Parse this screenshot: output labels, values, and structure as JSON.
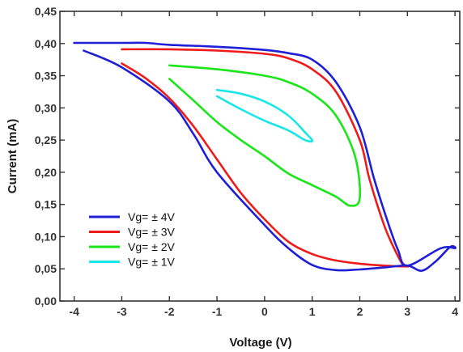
{
  "chart_data": {
    "type": "line",
    "title": "",
    "xlabel": "Voltage (V)",
    "ylabel": "Current (mA)",
    "xlim": [
      -4.3,
      4.1
    ],
    "ylim": [
      0.0,
      0.45
    ],
    "x_ticks": [
      -4,
      -3,
      -2,
      -1,
      0,
      1,
      2,
      3,
      4
    ],
    "x_tick_labels": [
      "-4",
      "-3",
      "-2",
      "-1",
      "0",
      "1",
      "2",
      "3",
      "4"
    ],
    "y_ticks": [
      0.0,
      0.05,
      0.1,
      0.15,
      0.2,
      0.25,
      0.3,
      0.35,
      0.4,
      0.45
    ],
    "y_tick_labels": [
      "0,00",
      "0,05",
      "0,10",
      "0,15",
      "0,20",
      "0,25",
      "0,30",
      "0,35",
      "0,40",
      "0,45"
    ],
    "grid": false,
    "legend_position": "bottom-left",
    "series": [
      {
        "name": "Vg= ± 4V",
        "color": "#1f1fd6",
        "x": [
          -3.8,
          -3.0,
          -2.0,
          -1.5,
          -1.0,
          0.0,
          0.5,
          1.0,
          1.5,
          2.0,
          2.5,
          3.0,
          3.3,
          3.6,
          3.9,
          4.0,
          3.7,
          3.0,
          2.8,
          2.6,
          2.3,
          2.0,
          1.5,
          1.0,
          0.5,
          0.0,
          -1.0,
          -2.0,
          -2.5,
          -3.0,
          -4.0
        ],
        "y": [
          0.389,
          0.363,
          0.31,
          0.26,
          0.2,
          0.118,
          0.082,
          0.056,
          0.048,
          0.049,
          0.052,
          0.055,
          0.047,
          0.062,
          0.084,
          0.082,
          0.082,
          0.055,
          0.08,
          0.12,
          0.19,
          0.27,
          0.34,
          0.375,
          0.385,
          0.39,
          0.395,
          0.398,
          0.401,
          0.401,
          0.401
        ]
      },
      {
        "name": "Vg= ± 3V",
        "color": "#ee1b1b",
        "x": [
          -3.0,
          -2.5,
          -2.0,
          -1.5,
          -1.0,
          -0.5,
          0.0,
          0.5,
          1.0,
          1.5,
          2.0,
          2.5,
          3.0,
          2.9,
          2.7,
          2.5,
          2.2,
          2.0,
          1.5,
          1.0,
          0.5,
          0.0,
          -1.0,
          -2.0,
          -3.0
        ],
        "y": [
          0.369,
          0.346,
          0.315,
          0.272,
          0.22,
          0.168,
          0.127,
          0.092,
          0.073,
          0.063,
          0.058,
          0.055,
          0.054,
          0.057,
          0.085,
          0.12,
          0.19,
          0.25,
          0.325,
          0.36,
          0.377,
          0.384,
          0.389,
          0.391,
          0.391
        ]
      },
      {
        "name": "Vg= ± 2V",
        "color": "#19e619",
        "x": [
          -2.0,
          -1.5,
          -1.0,
          -0.5,
          0.0,
          0.5,
          1.0,
          1.5,
          1.8,
          2.0,
          1.9,
          1.5,
          1.0,
          0.5,
          0.0,
          -1.0,
          -2.0
        ],
        "y": [
          0.345,
          0.312,
          0.278,
          0.25,
          0.225,
          0.198,
          0.18,
          0.162,
          0.148,
          0.16,
          0.225,
          0.288,
          0.322,
          0.34,
          0.35,
          0.36,
          0.366
        ]
      },
      {
        "name": "Vg= ± 1V",
        "color": "#19e6e6",
        "x": [
          -1.0,
          -0.5,
          0.0,
          0.5,
          0.85,
          1.0,
          0.85,
          0.5,
          0.0,
          -0.5,
          -1.0
        ],
        "y": [
          0.318,
          0.298,
          0.28,
          0.265,
          0.25,
          0.249,
          0.262,
          0.288,
          0.31,
          0.322,
          0.328
        ]
      }
    ]
  }
}
